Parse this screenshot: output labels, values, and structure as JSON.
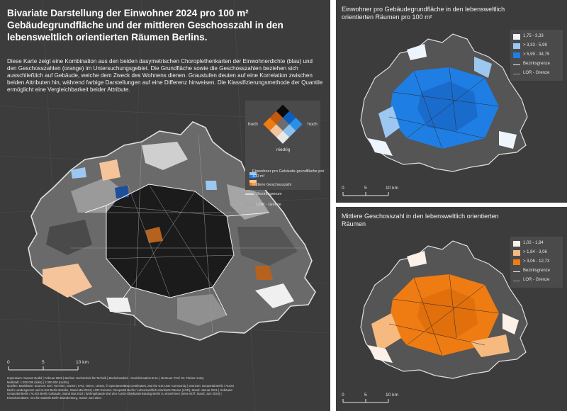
{
  "main": {
    "title": "Bivariate Darstellung der Einwohner 2024 pro 100 m² Gebäudegrundfläche und der mittleren Geschosszahl in den lebensweltlich orientierten Räumen Berlins.",
    "description": "Diese Karte zeigt eine Kombination aus den beiden dasymetrischen Choroplethenkarten der Einwohnerdichte (blau) und den Geschosszahlen (orange) im Untersuchungsgebiet. Die Grundfläche sowie die Geschosszahlen beziehen sich ausschließlich auf Gebäude, welche dem Zweck des Wohnens dienen. Graustufen deuten auf eine Korrelation zwischen beiden Attributen hin, während farbige Darstellungen auf eine Differenz hinweisen. Die Klassifizierungsmethode der Quantile ermöglicht eine Vergleichbarkeit beider Attribute.",
    "legend": {
      "hoch_left": "hoch",
      "hoch_right": "hoch",
      "niedrig": "niedrig",
      "blue_label": "Einwohner pro Gebäude-grundfläche pro 100 m²",
      "orange_label": "Mittlere Geschosszahl",
      "district_label": "Bezirksgrenze",
      "lor_label": "LOR - Grenze"
    },
    "scale": {
      "t0": "0",
      "t1": "5",
      "t2": "10 km"
    },
    "credits": [
      "Impressum: Susann Dedel | Februar 2025 | Berliner Hochschule für Technik | Bachelorarbeit - Geoinformation B.Sc. | Betreuer: Prof. Dr. Florian Hruby",
      "Maßstab: 1:200 000 (links) | 1:300 000 (rechts)",
      "Quellen: Basiskarte: Sources: Esri, TomTom, Garmin, FAO, NOAA, USGS, © OpenStreetMap contributors, and the GIS User Community | Grenzen: Geoportal Berlin / ALKIS",
      "Berlin Landesgrenze und ALKIS Berlin Bezirke, Stand Mai 2024 | LOR-Grenzen: Geoportal Berlin / Lebensweltlich orientierte Räume (LOR), Stand: Januar 2021 | Gebäude:",
      "Geoportal Berlin / ALKIS Berlin Gebäude, Stand Mai 2024 | Wohngebäude sind den ALKIS-Objektartenkatalog Berlin zu entnehmen (Seite 94 ff. Stand: Juni 2024) |",
      "Einwohnerdaten: Amt für Statistik Berlin-Brandenburg, Stand: Juni 2024"
    ]
  },
  "top_right": {
    "title": "Einwohner pro Gebäudegrundfläche in den lebensweltlich orientierten Räumen pro 100 m²",
    "legend": [
      {
        "label": "1,75 - 3,33",
        "color": "#eef4fb"
      },
      {
        "label": "> 3,33 - 5,99",
        "color": "#9cc7f0"
      },
      {
        "label": "> 5,99 - 34,75",
        "color": "#1f7ee3"
      }
    ],
    "district_label": "Bezirksgrenze",
    "lor_label": "LOR - Grenze",
    "scale": {
      "t0": "0",
      "t1": "5",
      "t2": "10 km"
    }
  },
  "bottom_right": {
    "title": "Mittlere Geschosszahl in den lebensweltlich orientierten Räumen",
    "legend": [
      {
        "label": "1,02 - 1,84",
        "color": "#fbf1e8"
      },
      {
        "label": "> 1,84 - 3,06",
        "color": "#f6b97e"
      },
      {
        "label": "> 3,06 - 12,73",
        "color": "#ee7c12"
      }
    ],
    "district_label": "Bezirksgrenze",
    "lor_label": "LOR - Grenze",
    "scale": {
      "t0": "0",
      "t1": "5",
      "t2": "10 km"
    }
  },
  "colors": {
    "background": "#3c3c3c",
    "bivar_dark": "#1a1a1a",
    "bivar_mid": "#8c8c8c",
    "bivar_light": "#e6e6e6",
    "blue": "#1f7ee3",
    "orange": "#ee7c12"
  }
}
